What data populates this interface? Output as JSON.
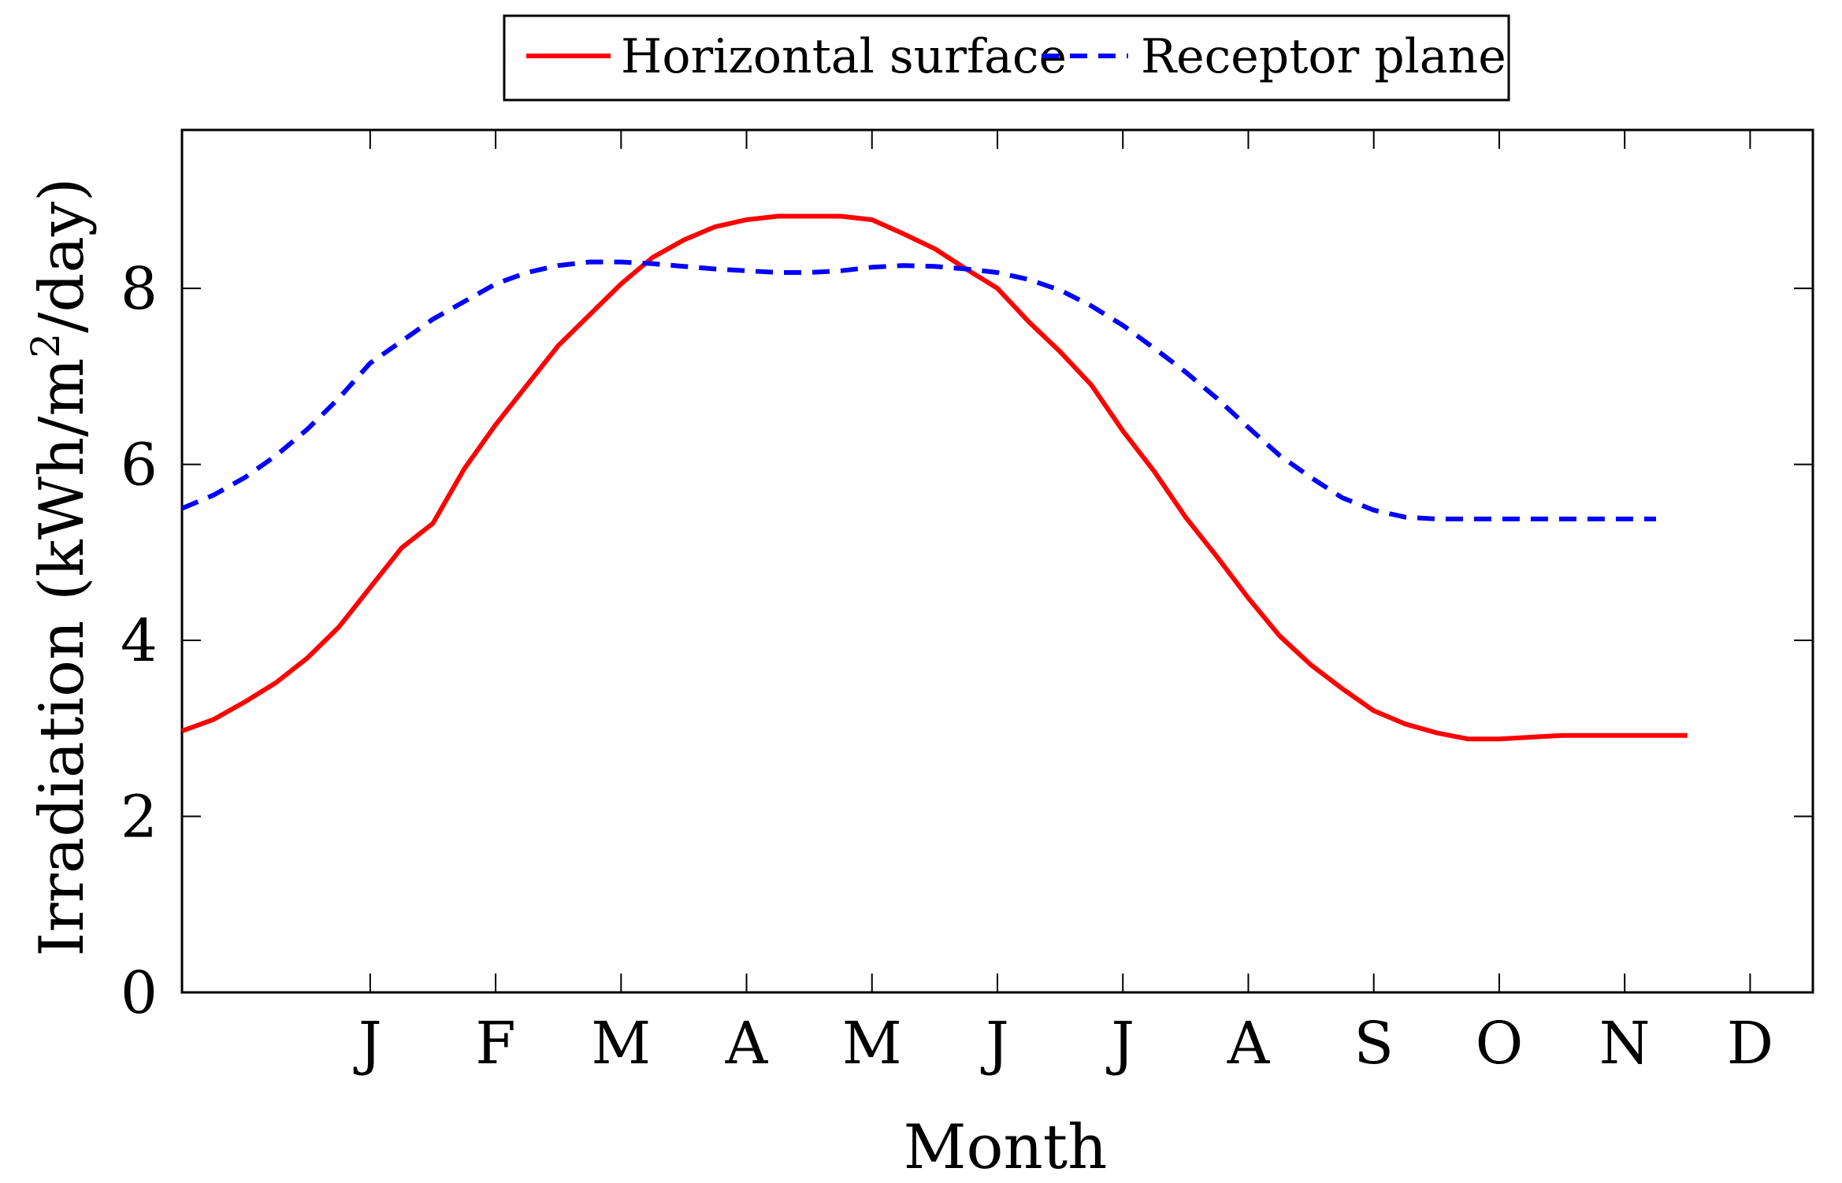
{
  "chart_data": {
    "type": "line",
    "title": "",
    "xlabel": "Month",
    "ylabel": "Irradiation (kWh/m",
    "ylabel_sup": "2",
    "ylabel_suffix": "/day)",
    "categories": [
      "J",
      "F",
      "M",
      "A",
      "M",
      "J",
      "J",
      "A",
      "S",
      "O",
      "N",
      "D"
    ],
    "xlim": [
      -0.5,
      12.5
    ],
    "ylim": [
      0,
      9.8
    ],
    "yticks": [
      0,
      2,
      4,
      6,
      8
    ],
    "legend_position": "top-center",
    "series": [
      {
        "name": "Horizontal surface",
        "color": "#ff0000",
        "style": "solid",
        "x": [
          -0.5,
          -0.25,
          0.0,
          0.25,
          0.5,
          0.75,
          1.0,
          1.25,
          1.5,
          1.75,
          2.0,
          2.25,
          2.5,
          2.75,
          3.0,
          3.25,
          3.5,
          3.75,
          4.0,
          4.25,
          4.5,
          4.75,
          5.0,
          5.25,
          5.5,
          5.75,
          6.0,
          6.25,
          6.5,
          6.75,
          7.0,
          7.25,
          7.5,
          7.75,
          8.0,
          8.25,
          8.5,
          8.75,
          9.0,
          9.25,
          9.5,
          9.75,
          10.0,
          10.25,
          10.5,
          10.75,
          11.0,
          11.25,
          11.5
        ],
        "y": [
          2.97,
          3.1,
          3.3,
          3.52,
          3.8,
          4.15,
          4.6,
          5.05,
          5.33,
          5.95,
          6.45,
          6.9,
          7.35,
          7.7,
          8.05,
          8.35,
          8.55,
          8.7,
          8.78,
          8.82,
          8.82,
          8.82,
          8.78,
          8.62,
          8.45,
          8.22,
          8.0,
          7.62,
          7.28,
          6.9,
          6.38,
          5.92,
          5.4,
          4.95,
          4.48,
          4.05,
          3.72,
          3.45,
          3.2,
          3.05,
          2.95,
          2.88,
          2.88,
          2.9,
          2.92,
          2.92,
          2.92,
          2.92,
          2.92
        ]
      },
      {
        "name": "Receptor plane",
        "color": "#0000ff",
        "style": "dashed",
        "x": [
          -0.5,
          -0.25,
          0.0,
          0.25,
          0.5,
          0.75,
          1.0,
          1.25,
          1.5,
          1.75,
          2.0,
          2.25,
          2.5,
          2.75,
          3.0,
          3.25,
          3.5,
          3.75,
          4.0,
          4.25,
          4.5,
          4.75,
          5.0,
          5.25,
          5.5,
          5.75,
          6.0,
          6.25,
          6.5,
          6.75,
          7.0,
          7.25,
          7.5,
          7.75,
          8.0,
          8.25,
          8.5,
          8.75,
          9.0,
          9.25,
          9.5,
          9.75,
          10.0,
          10.25,
          10.5,
          10.75,
          11.0,
          11.25
        ],
        "y": [
          5.5,
          5.65,
          5.85,
          6.1,
          6.4,
          6.75,
          7.15,
          7.4,
          7.65,
          7.85,
          8.05,
          8.18,
          8.26,
          8.3,
          8.3,
          8.28,
          8.25,
          8.22,
          8.2,
          8.18,
          8.18,
          8.2,
          8.24,
          8.26,
          8.25,
          8.22,
          8.18,
          8.1,
          7.98,
          7.8,
          7.58,
          7.32,
          7.05,
          6.75,
          6.42,
          6.1,
          5.85,
          5.62,
          5.48,
          5.4,
          5.38,
          5.38,
          5.38,
          5.38,
          5.38,
          5.38,
          5.38,
          5.38
        ]
      }
    ]
  }
}
